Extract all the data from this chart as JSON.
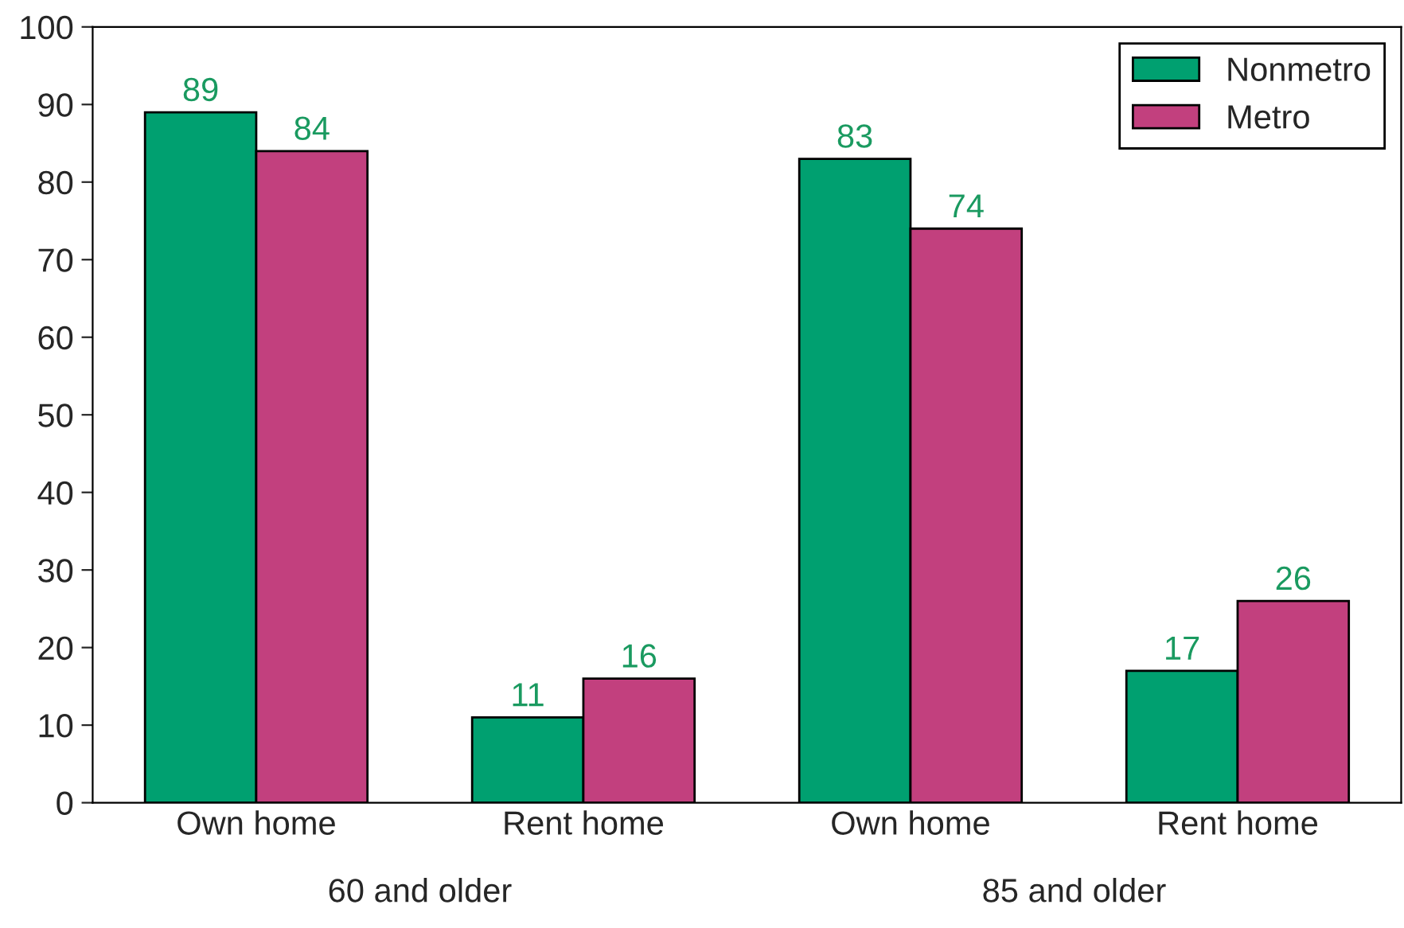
{
  "chart_data": {
    "type": "bar",
    "categories": [
      "Own home",
      "Rent home",
      "Own home",
      "Rent home"
    ],
    "series": [
      {
        "name": "Nonmetro",
        "color": "#00a070",
        "values": [
          89,
          11,
          83,
          17
        ]
      },
      {
        "name": "Metro",
        "color": "#c2407e",
        "values": [
          84,
          16,
          74,
          26
        ]
      }
    ],
    "ylim": [
      0,
      100
    ],
    "yticks": [
      0,
      10,
      20,
      30,
      40,
      50,
      60,
      70,
      80,
      90,
      100
    ],
    "data_labels": true,
    "legend": "top right",
    "grid": false,
    "annotations": [
      "60 and older",
      "85 and older"
    ]
  }
}
